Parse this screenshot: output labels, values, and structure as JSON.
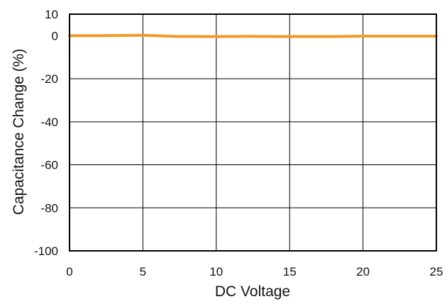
{
  "chart_data": {
    "type": "line",
    "title": "",
    "xlabel": "DC Voltage",
    "ylabel": "Capacitance Change (%)",
    "xlim": [
      0,
      25
    ],
    "ylim": [
      -100,
      10
    ],
    "x_ticks": [
      0,
      5,
      10,
      15,
      20,
      25
    ],
    "x_tick_labels": [
      "0",
      "5",
      "10",
      "15",
      "20",
      "25"
    ],
    "y_ticks": [
      10,
      0,
      -20,
      -40,
      -60,
      -80,
      -100
    ],
    "y_tick_labels": [
      "10",
      "0",
      "-20",
      "-40",
      "-60",
      "-80",
      "-100"
    ],
    "grid": true,
    "legend": "none",
    "series": [
      {
        "color": "#f39a2a",
        "x": [
          0,
          2,
          5,
          7,
          10,
          12,
          15,
          18,
          20,
          22,
          25
        ],
        "y": [
          0,
          0,
          0.2,
          -0.3,
          -0.4,
          -0.3,
          -0.4,
          -0.4,
          -0.2,
          -0.2,
          -0.2
        ]
      }
    ]
  }
}
